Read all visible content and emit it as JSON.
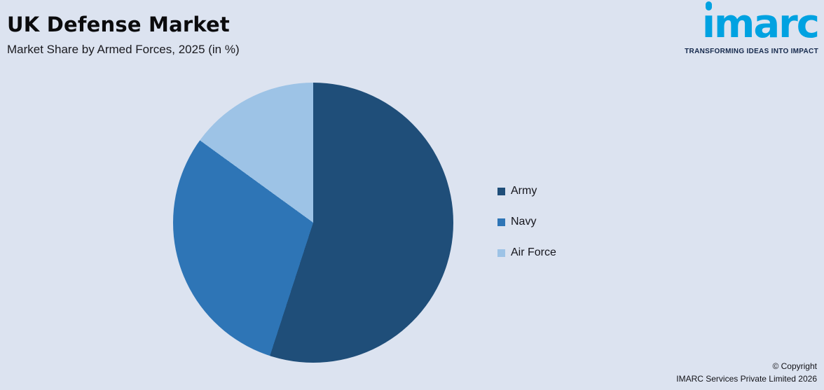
{
  "header": {
    "title": "UK Defense Market",
    "subtitle": "Market Share by Armed Forces, 2025 (in %)"
  },
  "logo": {
    "text": "imarc",
    "tagline": "TRANSFORMING IDEAS INTO IMPACT",
    "color": "#00A2E1"
  },
  "chart_data": {
    "type": "pie",
    "title": "UK Defense Market",
    "subtitle": "Market Share by Armed Forces, 2025 (in %)",
    "categories": [
      "Army",
      "Navy",
      "Air Force"
    ],
    "values": [
      55,
      30,
      15
    ],
    "colors": [
      "#1F4E79",
      "#2E75B6",
      "#9DC3E6"
    ],
    "start_angle_deg": 0,
    "direction": "clockwise",
    "legend_position": "right",
    "background": "#DCE3F0"
  },
  "footer": {
    "copyright_line1": "© Copyright",
    "copyright_line2": "IMARC Services Private Limited 2026"
  }
}
